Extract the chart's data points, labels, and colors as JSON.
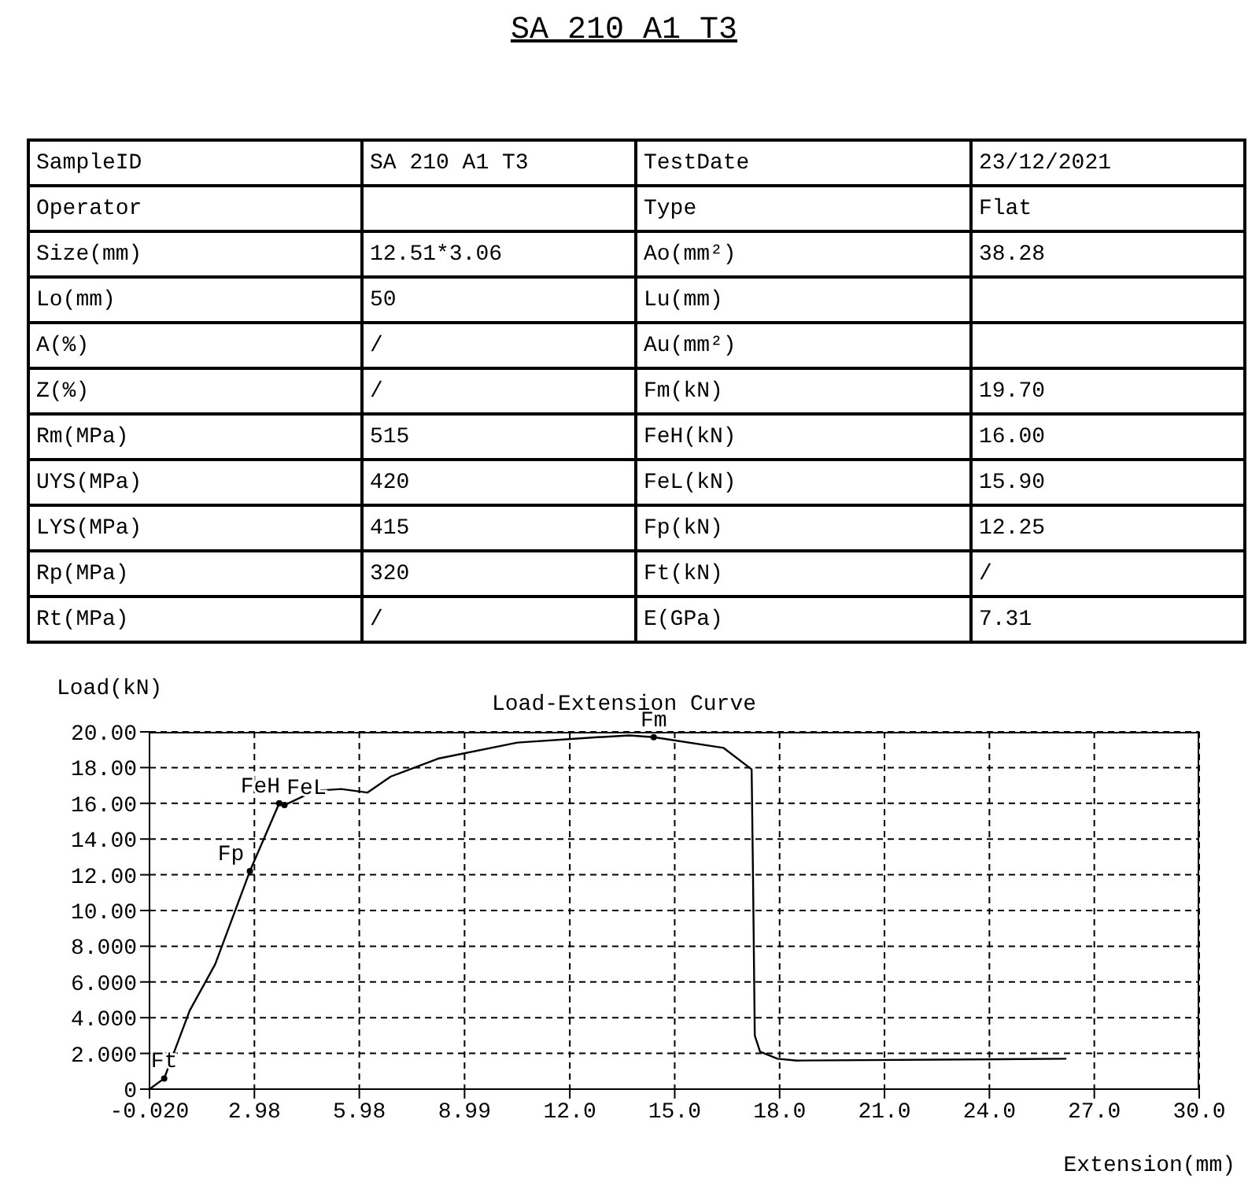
{
  "chart_data": [
    {
      "type": "other",
      "title": "SA 210 A1 T3",
      "annotations": [
        "SampleID",
        "SA 210 A1 T3",
        "TestDate",
        "23/12/2021",
        "Operator",
        null,
        "Type",
        "Flat",
        "Size(mm)",
        "12.51*3.06",
        "Ao(mm²)",
        "38.28",
        "Lo(mm)",
        "50",
        "Lu(mm)",
        null,
        "A(%)",
        "/",
        "Au(mm²)",
        null,
        "Z(%)",
        "/",
        "Fm(kN)",
        "19.70",
        "Rm(MPa)",
        "515",
        "FeH(kN)",
        "16.00",
        "UYS(MPa)",
        "420",
        "FeL(kN)",
        "15.90",
        "LYS(MPa)",
        "415",
        "Fp(kN)",
        "12.25",
        "Rp(MPa)",
        "320",
        "Ft(kN)",
        "/",
        "Rt(MPa)",
        "/",
        "E(GPa)",
        "7.31"
      ]
    },
    {
      "type": "line",
      "title": "Load-Extension Curve",
      "xlabel": "Extension(mm)",
      "ylabel": "Load(kN)",
      "grid": true,
      "line_style": "solid",
      "xlim": [
        -0.02,
        30
      ],
      "xticks": [
        {
          "value": -0.02,
          "label": "-0.020"
        },
        {
          "value": 2.98,
          "label": "2.98"
        },
        {
          "value": 5.98,
          "label": "5.98"
        },
        {
          "value": 8.99,
          "label": "8.99"
        },
        {
          "value": 12,
          "label": "12.0"
        },
        {
          "value": 15,
          "label": "15.0"
        },
        {
          "value": 18,
          "label": "18.0"
        },
        {
          "value": 21,
          "label": "21.0"
        },
        {
          "value": 24,
          "label": "24.0"
        },
        {
          "value": 27,
          "label": "27.0"
        },
        {
          "value": 30,
          "label": "30.0"
        }
      ],
      "ylim": [
        0,
        20
      ],
      "yticks": [
        0,
        {
          "value": 2,
          "label": "2.000"
        },
        {
          "value": 4,
          "label": "4.000"
        },
        {
          "value": 6,
          "label": "6.000"
        },
        {
          "value": 8,
          "label": "8.000"
        },
        {
          "value": 10,
          "label": "10.00"
        },
        {
          "value": 12,
          "label": "12.00"
        },
        {
          "value": 14,
          "label": "14.00"
        },
        {
          "value": 16,
          "label": "16.00"
        },
        {
          "value": 18,
          "label": "18.00"
        },
        {
          "value": 20,
          "label": "20.00"
        }
      ],
      "series": [
        {
          "type": "line",
          "color": "#000000",
          "marker": "none",
          "x": [
            -0.02,
            0.4,
            1.13,
            1.86,
            2.85,
            3.69,
            3.84,
            4.71,
            5.46,
            6.21,
            6.88,
            8.23,
            10.5,
            12.8,
            13.7,
            14.4,
            16.4,
            17.2,
            17.24,
            17.29,
            17.44,
            17.94,
            18.5,
            26.2
          ],
          "values": [
            0,
            0.6,
            4.4,
            7.0,
            12.2,
            16.0,
            15.9,
            16.7,
            16.8,
            16.6,
            17.5,
            18.5,
            19.4,
            19.7,
            19.8,
            19.7,
            19.1,
            17.9,
            11.8,
            3.0,
            2.1,
            1.7,
            1.6,
            1.7
          ]
        },
        {
          "type": "scatter",
          "color": "#000000",
          "marker": "circle",
          "x": [
            0.4,
            2.85,
            3.69,
            3.84,
            14.4
          ],
          "values": [
            0.6,
            12.2,
            16.0,
            15.9,
            19.7
          ]
        }
      ],
      "annotations": [
        {
          "text": "Ft",
          "x": 0.4,
          "y": 0.6
        },
        {
          "text": "Fp",
          "x": 2.85,
          "y": 12.2
        },
        {
          "text": "FeH",
          "x": 3.69,
          "y": 16.0
        },
        {
          "text": "FeL",
          "x": 3.84,
          "y": 15.9
        },
        {
          "text": "Fm",
          "x": 14.4,
          "y": 19.7
        }
      ]
    }
  ]
}
